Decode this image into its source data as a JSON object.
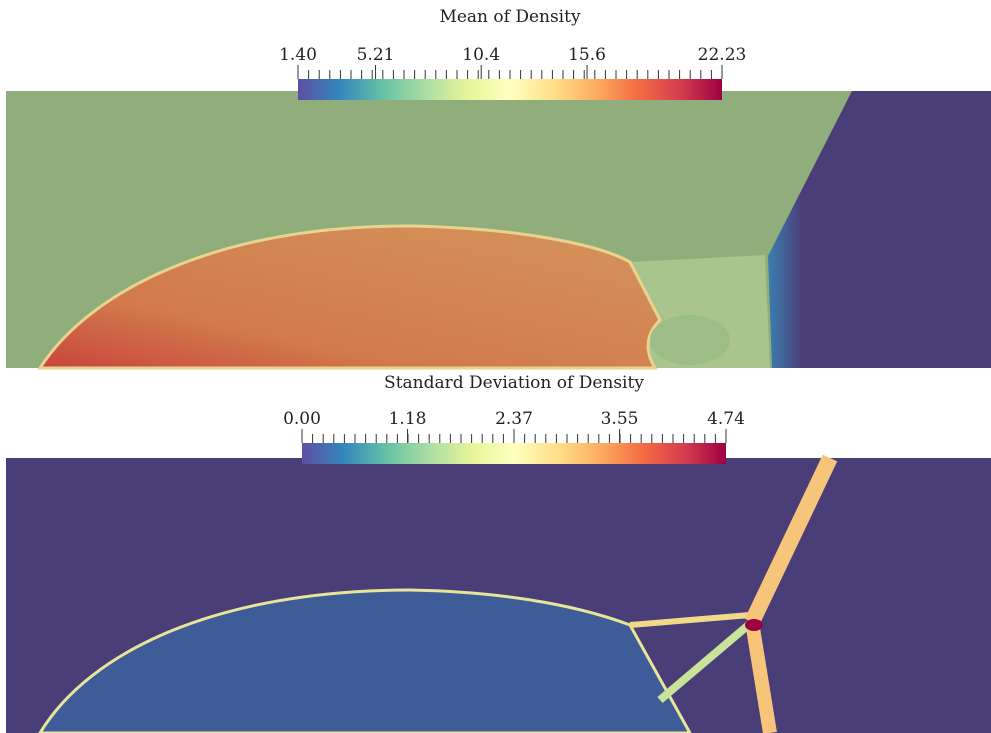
{
  "panels": [
    {
      "title": "Mean of Density",
      "colorbar": {
        "ticks": [
          {
            "value": 1.4,
            "label": "1.40"
          },
          5.21,
          10.4,
          15.6,
          22.23
        ]
      }
    },
    {
      "title": "Standard Deviation of Density",
      "colorbar": {
        "ticks": [
          {
            "value": 0,
            "label": "0.00"
          },
          1.18,
          2.37,
          3.55,
          4.74
        ]
      }
    }
  ]
}
